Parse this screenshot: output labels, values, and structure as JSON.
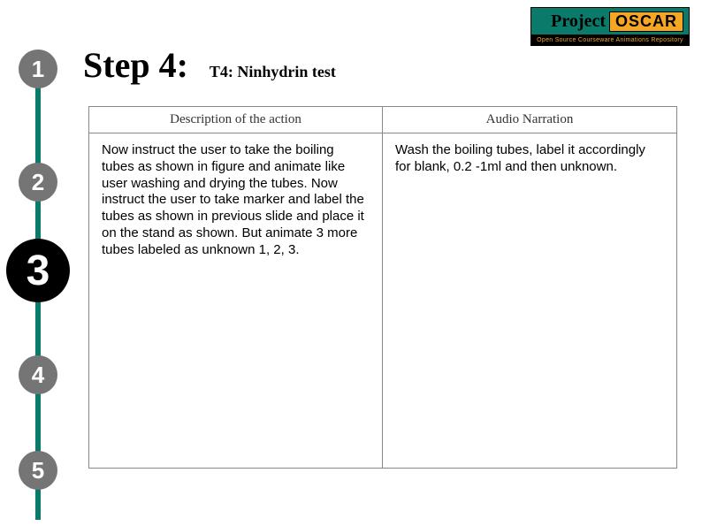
{
  "logo": {
    "project": "Project",
    "oscar": "OSCAR",
    "tagline": "Open Source Courseware Animations Repository"
  },
  "steps": {
    "items": [
      {
        "num": "1"
      },
      {
        "num": "2"
      },
      {
        "num": "3"
      },
      {
        "num": "4"
      },
      {
        "num": "5"
      }
    ],
    "active_index": 2
  },
  "title": {
    "step": "Step 4:",
    "sub": "T4: Ninhydrin test"
  },
  "table": {
    "headers": {
      "left": "Description of the action",
      "right": "Audio Narration"
    },
    "cells": {
      "left": "Now instruct the user to take the boiling tubes as shown in figure and animate like user washing and drying the tubes. Now instruct the user to take marker and label the tubes as shown in previous slide and place it on the stand as shown. But animate 3 more tubes labeled as unknown 1, 2, 3.",
      "right": "Wash the boiling tubes, label it accordingly for blank, 0.2 -1ml and then unknown."
    }
  }
}
